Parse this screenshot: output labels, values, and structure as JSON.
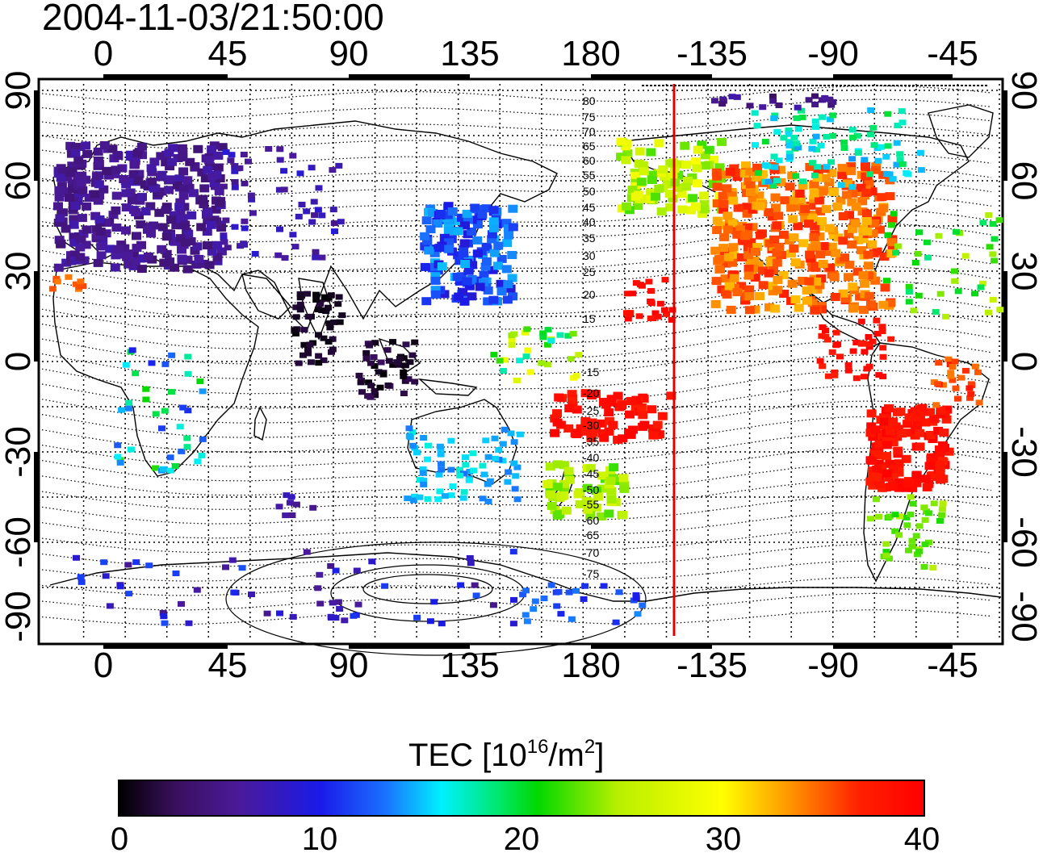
{
  "timestamp": "2004-11-03/21:50:00",
  "x_ticks": [
    "0",
    "45",
    "90",
    "135",
    "180",
    "-135",
    "-90",
    "-45"
  ],
  "y_ticks": [
    "90",
    "60",
    "30",
    "0",
    "-30",
    "-60",
    "-90"
  ],
  "contour_labels_upper": [
    "80",
    "75",
    "70",
    "65",
    "60",
    "55",
    "50",
    "45",
    "40",
    "35",
    "30",
    "25",
    "20",
    "15"
  ],
  "contour_labels_lower": [
    "-15",
    "-20",
    "-25",
    "-30",
    "-35",
    "-40",
    "-45",
    "-50",
    "-55",
    "-60",
    "-65",
    "-70",
    "-75"
  ],
  "colorbar": {
    "title_main": "TEC  [10",
    "title_exp1": "16",
    "title_mid": "/m",
    "title_exp2": "2",
    "title_end": "]",
    "ticks": [
      "0",
      "10",
      "20",
      "30",
      "40"
    ],
    "range": [
      0,
      40
    ]
  },
  "map": {
    "projection": "equirectangular",
    "lon_start": -15,
    "lon_end": 330,
    "lat_range": [
      -90,
      90
    ],
    "marker_longitude": -152,
    "marker_color": "#e00000"
  }
}
